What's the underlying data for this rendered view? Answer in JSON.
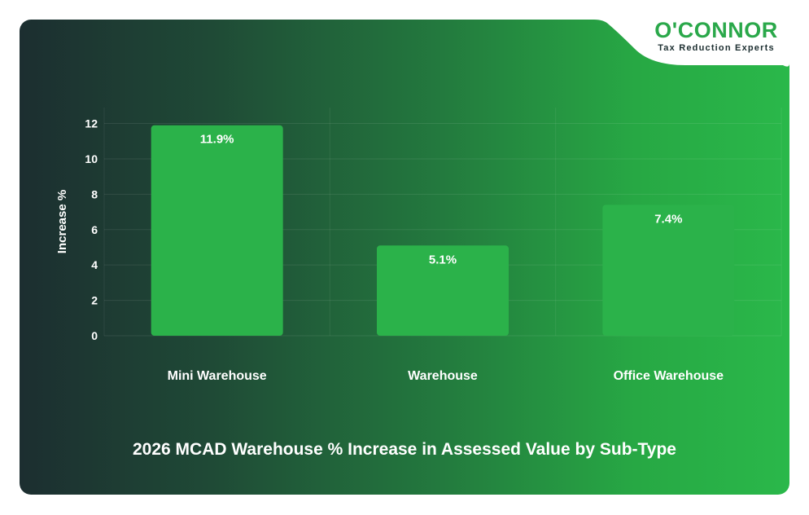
{
  "brand": {
    "name": "O'CONNOR",
    "tagline": "Tax Reduction Experts",
    "color": "#2aa84a"
  },
  "chart_data": {
    "type": "bar",
    "title": "2026 MCAD Warehouse % Increase in Assessed Value by Sub-Type",
    "xlabel": "",
    "ylabel": "Increase %",
    "categories": [
      "Mini Warehouse",
      "Warehouse",
      "Office Warehouse"
    ],
    "values": [
      11.9,
      5.1,
      7.4
    ],
    "data_labels": [
      "11.9%",
      "5.1%",
      "7.4%"
    ],
    "yticks": [
      0,
      2,
      4,
      6,
      8,
      10,
      12
    ],
    "ylim": [
      0,
      12.9
    ],
    "grid": true,
    "bar_color": "#2bb24a"
  }
}
